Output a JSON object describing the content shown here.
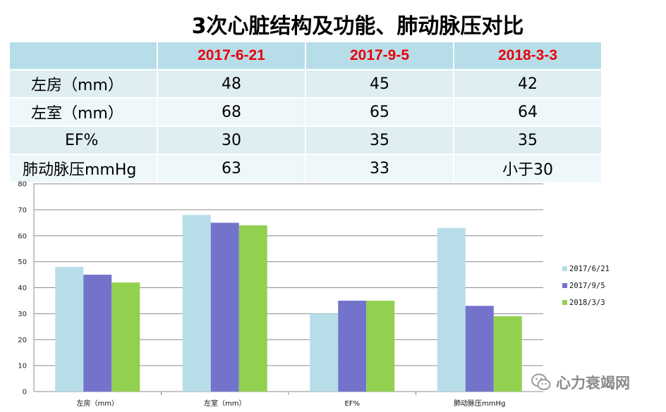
{
  "title": "3次心脏结构及功能、肺动脉压对比",
  "table": {
    "headers": [
      "",
      "2017-6-21",
      "2017-9-5",
      "2018-3-3"
    ],
    "rows": [
      {
        "label": "左房（mm）",
        "values": [
          "48",
          "45",
          "42"
        ]
      },
      {
        "label": "左室（mm）",
        "values": [
          "68",
          "65",
          "64"
        ]
      },
      {
        "label": "EF%",
        "values": [
          "30",
          "35",
          "35"
        ]
      },
      {
        "label": "肺动脉压mmHg",
        "values": [
          "63",
          "33",
          "小于30"
        ]
      }
    ]
  },
  "chart_data": {
    "type": "bar",
    "categories": [
      "左房（mm）",
      "左室（mm）",
      "EF%",
      "肺动脉压mmHg"
    ],
    "series": [
      {
        "name": "2017/6/21",
        "color": "#b7dee8",
        "values": [
          48,
          68,
          30,
          63
        ]
      },
      {
        "name": "2017/9/5",
        "color": "#7373cc",
        "values": [
          45,
          65,
          35,
          33
        ]
      },
      {
        "name": "2018/3/3",
        "color": "#92d050",
        "values": [
          42,
          64,
          35,
          29
        ]
      }
    ],
    "ylim": [
      0,
      80
    ],
    "yticks": [
      0,
      10,
      20,
      30,
      40,
      50,
      60,
      70,
      80
    ],
    "grid": true,
    "legend": "right"
  },
  "watermark": {
    "text": "心力衰竭网",
    "icon": "wechat-icon"
  }
}
